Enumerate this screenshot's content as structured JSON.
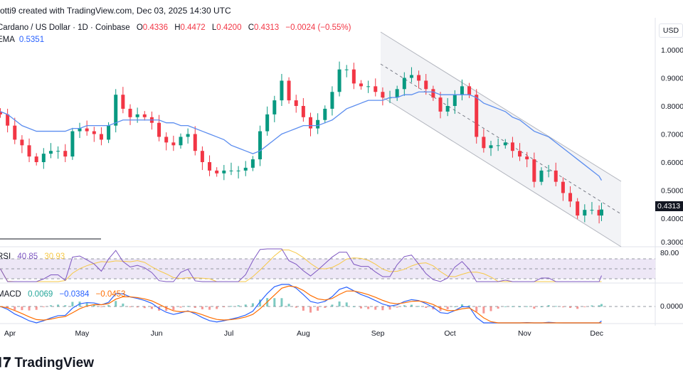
{
  "header": {
    "credit": "otti9 created with TradingView.com, Dec 03, 2025 14:30 UTC",
    "symbol": "Cardano / US Dollar · 1D · Coinbase",
    "open_label": "O",
    "open": "0.4336",
    "high_label": "H",
    "high": "0.4472",
    "low_label": "L",
    "low": "0.4200",
    "close_label": "C",
    "close": "0.4313",
    "change": "−0.0024 (−0.55%)",
    "ema_label": "EMA",
    "ema_value": "0.5351"
  },
  "rsi": {
    "label": "RSI",
    "value": "40.85",
    "ma_value": "30.93",
    "axis_label": "80.00"
  },
  "macd": {
    "label": "MACD",
    "hist": "0.0069",
    "macd": "−0.0384",
    "signal": "−0.0453",
    "axis_label": "0.0000"
  },
  "currency_button": "USD",
  "last_price_tag": "0.4313",
  "logo_text": "TradingView",
  "colors": {
    "up": "#089981",
    "down": "#f23645",
    "ema": "#5b8def",
    "rsi": "#7e57c2",
    "rsi_ma": "#f7c948",
    "macd": "#2962ff",
    "signal": "#ff6d00",
    "channel": "#b2b5be"
  },
  "chart_data": {
    "type": "candlestick",
    "title": "Cardano / US Dollar · 1D · Coinbase",
    "y_axis": {
      "ticks": [
        "1.0000",
        "0.9000",
        "0.8000",
        "0.7000",
        "0.6000",
        "0.5000",
        "0.4000",
        "0.3000"
      ],
      "range": [
        0.3,
        1.0
      ]
    },
    "x_axis": {
      "months": [
        {
          "label": "Apr",
          "date": "2025-04-01"
        },
        {
          "label": "May",
          "date": "2025-05-01"
        },
        {
          "label": "Jun",
          "date": "2025-06-01"
        },
        {
          "label": "Jul",
          "date": "2025-07-01"
        },
        {
          "label": "Aug",
          "date": "2025-08-01"
        },
        {
          "label": "Sep",
          "date": "2025-09-01"
        },
        {
          "label": "Oct",
          "date": "2025-10-01"
        },
        {
          "label": "Nov",
          "date": "2025-11-01"
        },
        {
          "label": "Dec",
          "date": "2025-12-01"
        }
      ]
    },
    "dates": [
      "2025-03-28",
      "2025-03-31",
      "2025-04-03",
      "2025-04-06",
      "2025-04-09",
      "2025-04-12",
      "2025-04-15",
      "2025-04-18",
      "2025-04-21",
      "2025-04-24",
      "2025-04-27",
      "2025-04-30",
      "2025-05-03",
      "2025-05-06",
      "2025-05-09",
      "2025-05-12",
      "2025-05-15",
      "2025-05-18",
      "2025-05-21",
      "2025-05-24",
      "2025-05-27",
      "2025-05-30",
      "2025-06-02",
      "2025-06-05",
      "2025-06-08",
      "2025-06-11",
      "2025-06-14",
      "2025-06-17",
      "2025-06-20",
      "2025-06-23",
      "2025-06-26",
      "2025-06-29",
      "2025-07-02",
      "2025-07-05",
      "2025-07-08",
      "2025-07-11",
      "2025-07-14",
      "2025-07-17",
      "2025-07-20",
      "2025-07-23",
      "2025-07-26",
      "2025-07-29",
      "2025-08-01",
      "2025-08-04",
      "2025-08-07",
      "2025-08-10",
      "2025-08-13",
      "2025-08-16",
      "2025-08-19",
      "2025-08-22",
      "2025-08-25",
      "2025-08-28",
      "2025-08-31",
      "2025-09-03",
      "2025-09-06",
      "2025-09-09",
      "2025-09-12",
      "2025-09-15",
      "2025-09-18",
      "2025-09-21",
      "2025-09-24",
      "2025-09-27",
      "2025-09-30",
      "2025-10-03",
      "2025-10-06",
      "2025-10-09",
      "2025-10-12",
      "2025-10-15",
      "2025-10-18",
      "2025-10-21",
      "2025-10-24",
      "2025-10-27",
      "2025-10-30",
      "2025-11-02",
      "2025-11-05",
      "2025-11-08",
      "2025-11-11",
      "2025-11-14",
      "2025-11-17",
      "2025-11-20",
      "2025-11-23",
      "2025-11-26",
      "2025-11-29",
      "2025-12-02",
      "2025-12-03"
    ],
    "close": [
      0.77,
      0.73,
      0.68,
      0.66,
      0.62,
      0.6,
      0.63,
      0.64,
      0.64,
      0.62,
      0.71,
      0.72,
      0.71,
      0.7,
      0.68,
      0.73,
      0.84,
      0.79,
      0.76,
      0.77,
      0.76,
      0.74,
      0.69,
      0.67,
      0.66,
      0.69,
      0.7,
      0.64,
      0.6,
      0.57,
      0.56,
      0.57,
      0.57,
      0.57,
      0.58,
      0.61,
      0.71,
      0.77,
      0.82,
      0.89,
      0.82,
      0.8,
      0.76,
      0.72,
      0.75,
      0.79,
      0.85,
      0.93,
      0.93,
      0.88,
      0.87,
      0.87,
      0.85,
      0.83,
      0.83,
      0.86,
      0.9,
      0.91,
      0.89,
      0.86,
      0.83,
      0.78,
      0.8,
      0.84,
      0.87,
      0.84,
      0.69,
      0.65,
      0.66,
      0.66,
      0.67,
      0.64,
      0.62,
      0.61,
      0.53,
      0.57,
      0.57,
      0.53,
      0.49,
      0.46,
      0.41,
      0.43,
      0.43,
      0.41,
      0.4313
    ],
    "ema": [
      0.78,
      0.77,
      0.75,
      0.73,
      0.72,
      0.71,
      0.71,
      0.71,
      0.71,
      0.71,
      0.72,
      0.72,
      0.73,
      0.73,
      0.73,
      0.73,
      0.74,
      0.75,
      0.75,
      0.75,
      0.75,
      0.75,
      0.75,
      0.74,
      0.74,
      0.73,
      0.73,
      0.72,
      0.71,
      0.7,
      0.69,
      0.68,
      0.66,
      0.65,
      0.64,
      0.63,
      0.64,
      0.66,
      0.68,
      0.7,
      0.71,
      0.72,
      0.73,
      0.73,
      0.73,
      0.74,
      0.75,
      0.77,
      0.79,
      0.8,
      0.81,
      0.82,
      0.82,
      0.82,
      0.83,
      0.83,
      0.84,
      0.84,
      0.85,
      0.85,
      0.85,
      0.84,
      0.84,
      0.84,
      0.84,
      0.84,
      0.83,
      0.81,
      0.8,
      0.79,
      0.78,
      0.76,
      0.75,
      0.73,
      0.71,
      0.7,
      0.69,
      0.67,
      0.65,
      0.63,
      0.61,
      0.59,
      0.57,
      0.55,
      0.5351
    ]
  }
}
